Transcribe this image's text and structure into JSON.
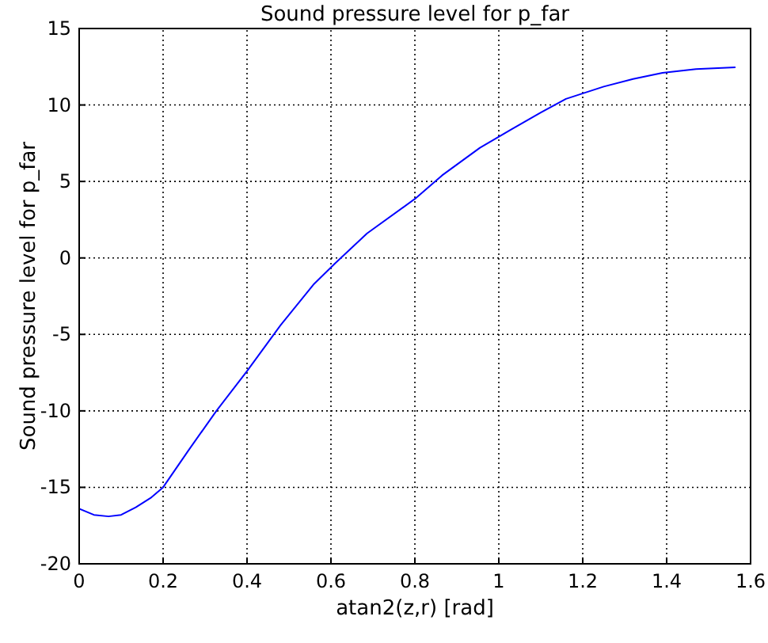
{
  "chart_data": {
    "type": "line",
    "title": "Sound pressure level for p_far",
    "xlabel": "atan2(z,r) [rad]",
    "ylabel": "Sound pressure level for p_far",
    "xlim": [
      0,
      1.6
    ],
    "ylim": [
      -20,
      15
    ],
    "xticks": [
      0,
      0.2,
      0.4,
      0.6,
      0.8,
      1,
      1.2,
      1.4,
      1.6
    ],
    "yticks": [
      -20,
      -15,
      -10,
      -5,
      0,
      5,
      10,
      15
    ],
    "grid": true,
    "series": [
      {
        "color": "#0000ff",
        "x": [
          0,
          0.035,
          0.07,
          0.1,
          0.135,
          0.17,
          0.2,
          0.26,
          0.327,
          0.4,
          0.48,
          0.558,
          0.61,
          0.686,
          0.8,
          0.865,
          0.955,
          1.03,
          1.1,
          1.16,
          1.25,
          1.32,
          1.39,
          1.47,
          1.564
        ],
        "values": [
          -16.4,
          -16.8,
          -16.9,
          -16.8,
          -16.3,
          -15.7,
          -15,
          -12.6,
          -10,
          -7.4,
          -4.4,
          -1.75,
          -0.35,
          1.6,
          3.86,
          5.4,
          7.2,
          8.4,
          9.5,
          10.4,
          11.2,
          11.7,
          12.1,
          12.35,
          12.46
        ]
      }
    ]
  }
}
